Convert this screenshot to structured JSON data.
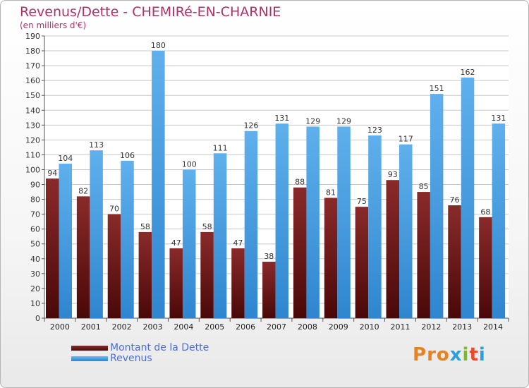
{
  "chart_data": {
    "type": "bar",
    "title": "Revenus/Dette - CHEMIRé-EN-CHARNIE",
    "subtitle": "(en milliers d'€)",
    "categories": [
      "2000",
      "2001",
      "2002",
      "2003",
      "2004",
      "2005",
      "2006",
      "2007",
      "2008",
      "2009",
      "2010",
      "2011",
      "2012",
      "2013",
      "2014"
    ],
    "series": [
      {
        "name": "Montant de la Dette",
        "color": "#6b1a1a",
        "values": [
          94,
          82,
          70,
          58,
          47,
          58,
          47,
          38,
          88,
          81,
          75,
          93,
          85,
          76,
          68
        ]
      },
      {
        "name": "Revenus",
        "color": "#3a97e0",
        "values": [
          104,
          113,
          106,
          180,
          100,
          111,
          126,
          131,
          129,
          129,
          123,
          117,
          151,
          162,
          131
        ]
      }
    ],
    "ylim": [
      0,
      190
    ],
    "ytick_step": 10,
    "grid": true,
    "legend": "bottom-left"
  },
  "logo": {
    "text": "Proxiti"
  }
}
